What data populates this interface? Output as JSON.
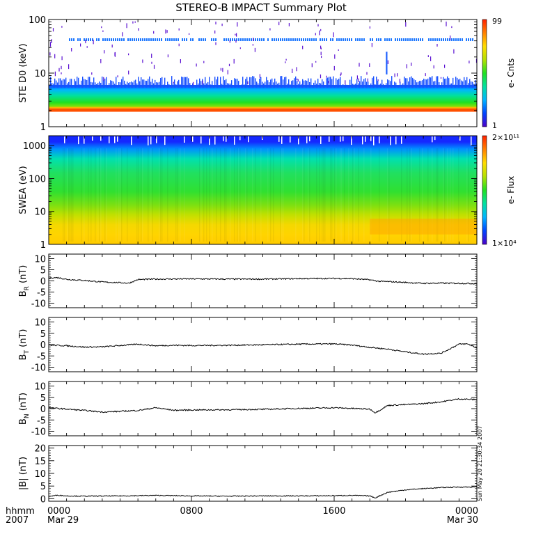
{
  "title": "STEREO-B IMPACT Summary Plot",
  "footer": {
    "left_top": "hhmm",
    "left_bottom": "2007",
    "timestamp": "Sun May 20 21:30:34 2007"
  },
  "chart_data": [
    {
      "type": "heatmap",
      "name": "STE",
      "ylabel": "STE D0 (keV)",
      "yscale": "log",
      "ylim": [
        1,
        100
      ],
      "y_ticks": [
        "1",
        "10",
        "100"
      ],
      "colorbar": {
        "label": "e- Cnts",
        "min_label": "1",
        "max_label": "99",
        "colors": [
          "#4b00c8",
          "#0044ff",
          "#00b4ff",
          "#00e0a0",
          "#20e020",
          "#b4e000",
          "#ffdc00",
          "#ff8000",
          "#ff2000"
        ]
      },
      "features": {
        "band_keV": [
          1.9,
          2.2
        ],
        "band_color": "#ff5000",
        "continuum_top_keV": 6,
        "fixed_line_keV": 42,
        "transient_keV": [
          12,
          25
        ],
        "transient_hour": 18.9
      }
    },
    {
      "type": "heatmap",
      "name": "SWEA",
      "ylabel": "SWEA (eV)",
      "yscale": "log",
      "ylim": [
        1,
        2000
      ],
      "y_ticks": [
        "1",
        "10",
        "100",
        "1000"
      ],
      "colorbar": {
        "label": "e- Flux",
        "min_label": "1×10⁴",
        "max_label": "2×10¹¹",
        "colors": [
          "#4b00c8",
          "#0044ff",
          "#00b4ff",
          "#00e0a0",
          "#20e020",
          "#b4e000",
          "#ffdc00",
          "#ff8000",
          "#ff2000"
        ]
      },
      "energy_profile": [
        {
          "energy": 1,
          "color": "#ffcc00"
        },
        {
          "energy": 2,
          "color": "#ffd400"
        },
        {
          "energy": 4,
          "color": "#f4d800"
        },
        {
          "energy": 8,
          "color": "#c0e000"
        },
        {
          "energy": 15,
          "color": "#80e010"
        },
        {
          "energy": 40,
          "color": "#30e030"
        },
        {
          "energy": 150,
          "color": "#20e060"
        },
        {
          "energy": 400,
          "color": "#00e0b0"
        },
        {
          "energy": 800,
          "color": "#0090ff"
        },
        {
          "energy": 1300,
          "color": "#1428ff"
        },
        {
          "energy": 2000,
          "color": "#1428ff"
        }
      ]
    },
    {
      "type": "line",
      "name": "BR",
      "ylabel": "B_R (nT)",
      "ylabel_main": "B",
      "ylabel_sub": "R",
      "ylabel_unit": " (nT)",
      "ylim": [
        -12,
        12
      ],
      "y_ticks": [
        -10,
        -5,
        0,
        5,
        10
      ],
      "x": [
        0,
        0.5,
        1,
        2,
        3,
        4,
        4.5,
        5,
        6,
        8,
        10,
        12,
        14,
        16,
        17,
        18,
        18.5,
        19,
        20,
        21,
        22,
        23,
        24
      ],
      "y": [
        1.3,
        1.5,
        0.7,
        0.2,
        -0.5,
        -0.8,
        -1.0,
        0.6,
        0.8,
        0.9,
        0.8,
        0.8,
        1.0,
        1.1,
        1.0,
        0.5,
        -0.2,
        -0.3,
        -0.7,
        -1.1,
        -1.0,
        -1.1,
        -1.2
      ]
    },
    {
      "type": "line",
      "name": "BT",
      "ylabel": "B_T (nT)",
      "ylabel_main": "B",
      "ylabel_sub": "T",
      "ylabel_unit": " (nT)",
      "ylim": [
        -12,
        12
      ],
      "y_ticks": [
        -10,
        -5,
        0,
        5,
        10
      ],
      "x": [
        0,
        1,
        2,
        3,
        4,
        5,
        6,
        7,
        8,
        10,
        12,
        14,
        16,
        17,
        18,
        19,
        20,
        21,
        22,
        23,
        23.5,
        24
      ],
      "y": [
        -0.2,
        -0.5,
        -1.1,
        -1.0,
        -0.4,
        0.2,
        -0.5,
        -0.3,
        -0.4,
        -0.3,
        -0.1,
        0.2,
        0.3,
        -0.2,
        -1.2,
        -2.0,
        -3.2,
        -4.2,
        -3.8,
        0.2,
        0.3,
        -1.5
      ]
    },
    {
      "type": "line",
      "name": "BN",
      "ylabel": "B_N (nT)",
      "ylabel_main": "B",
      "ylabel_sub": "N",
      "ylabel_unit": " (nT)",
      "ylim": [
        -12,
        12
      ],
      "y_ticks": [
        -10,
        -5,
        0,
        5,
        10
      ],
      "x": [
        0,
        1,
        2,
        3,
        4,
        5,
        6,
        7,
        8,
        10,
        12,
        14,
        16,
        17,
        18,
        18.3,
        18.6,
        19,
        20,
        21,
        22,
        23,
        24
      ],
      "y": [
        0.4,
        -0.2,
        -0.8,
        -1.5,
        -1.2,
        -0.8,
        0.4,
        -0.7,
        -0.6,
        -0.5,
        -0.3,
        0.1,
        0.4,
        0.1,
        -0.2,
        -1.8,
        -0.5,
        1.4,
        1.8,
        2.2,
        3.0,
        4.3,
        4.0
      ]
    },
    {
      "type": "line",
      "name": "B",
      "ylabel": "|B| (nT)",
      "ylabel_main": "|B|",
      "ylabel_sub": "",
      "ylabel_unit": " (nT)",
      "ylim": [
        -1,
        21
      ],
      "y_ticks": [
        0,
        5,
        10,
        15,
        20
      ],
      "x": [
        0,
        0.5,
        1,
        2,
        4,
        6,
        8,
        10,
        12,
        14,
        16,
        17,
        18,
        18.3,
        18.6,
        19,
        19.5,
        20,
        21,
        22,
        23,
        24
      ],
      "y": [
        0.9,
        1.4,
        1.1,
        1.0,
        1.1,
        1.3,
        1.1,
        1.0,
        1.1,
        1.1,
        1.2,
        1.3,
        1.1,
        0.3,
        1.3,
        2.5,
        3.0,
        3.5,
        4.0,
        4.4,
        4.6,
        4.6
      ]
    }
  ],
  "x_axis": {
    "label": "hhmm",
    "xlim": [
      0,
      24
    ],
    "ticks": [
      {
        "hour": 0,
        "label": "0000",
        "sublabel": "Mar 29"
      },
      {
        "hour": 8,
        "label": "0800",
        "sublabel": ""
      },
      {
        "hour": 16,
        "label": "1600",
        "sublabel": ""
      },
      {
        "hour": 24,
        "label": "0000",
        "sublabel": "Mar 30"
      }
    ]
  }
}
